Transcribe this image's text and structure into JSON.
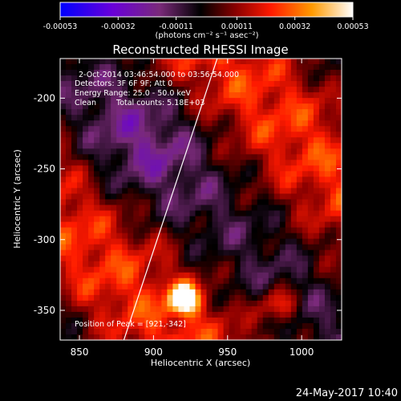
{
  "chart_data": {
    "type": "heatmap",
    "title": "Reconstructed RHESSI Image",
    "xlabel": "Heliocentric X (arcsec)",
    "ylabel": "Heliocentric Y (arcsec)",
    "xlim": [
      837,
      1027
    ],
    "ylim": [
      -371,
      -172
    ],
    "xticks": [
      850,
      900,
      950,
      1000
    ],
    "yticks": [
      -200,
      -250,
      -300,
      -350
    ],
    "colorbar": {
      "label": "(photons cm⁻² s⁻¹ asec⁻²)",
      "range": [
        -0.00053,
        0.00053
      ],
      "tick_values": [
        -0.00053,
        -0.00032,
        -0.00011,
        0.00011,
        0.00032,
        0.00053
      ],
      "tick_labels": [
        "-0.00053",
        "-0.00032",
        "-0.00011",
        "0.00011",
        "0.00032",
        "0.00053"
      ]
    },
    "annotations": {
      "time_range": "2-Oct-2014 03:46:54.000 to 03:56:54.000",
      "detectors": "Detectors: 3F 6F 9F; Att 0",
      "energy": "Energy Range: 25.0 - 50.0 keV",
      "clean": "Clean",
      "total_counts": "Total counts: 5.18E+03",
      "peak": "Position of Peak = [921,-342]"
    },
    "peak": [
      921,
      -342
    ],
    "limb_line": [
      [
        880,
        -371
      ],
      [
        943,
        -172
      ]
    ],
    "grid": false
  },
  "footer": {
    "timestamp": "24-May-2017 10:40"
  }
}
